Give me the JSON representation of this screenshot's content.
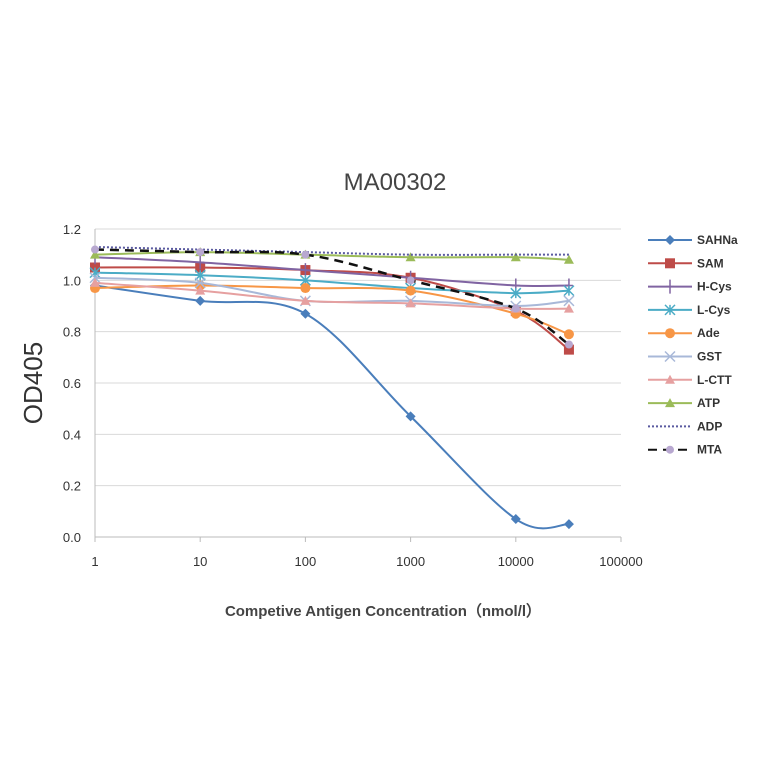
{
  "chart_data": {
    "type": "line",
    "title": "MA00302",
    "xlabel": "Competive Antigen Concentration（nmol/l）",
    "ylabel": "OD405",
    "xscale": "log",
    "xlim": [
      1,
      100000
    ],
    "ylim": [
      0,
      1.2
    ],
    "xticks": [
      "1",
      "10",
      "100",
      "1000",
      "10000",
      "100000"
    ],
    "yticks": [
      "0.0",
      "0.2",
      "0.4",
      "0.6",
      "0.8",
      "1.0",
      "1.2"
    ],
    "grid": "horizontal",
    "legend": "right",
    "x": [
      1,
      10,
      100,
      1000,
      10000,
      32000
    ],
    "series": [
      {
        "name": "SAHNa",
        "color": "#4a7ebb",
        "marker": "diamond",
        "dash": "solid",
        "values": [
          0.98,
          0.92,
          0.87,
          0.47,
          0.07,
          0.05
        ]
      },
      {
        "name": "SAM",
        "color": "#be4b48",
        "marker": "square",
        "dash": "solid",
        "values": [
          1.05,
          1.05,
          1.04,
          1.01,
          0.88,
          0.73
        ]
      },
      {
        "name": "H-Cys",
        "color": "#8064a2",
        "marker": "plus",
        "dash": "solid",
        "values": [
          1.09,
          1.07,
          1.04,
          1.01,
          0.98,
          0.98
        ]
      },
      {
        "name": "L-Cys",
        "color": "#4bacc6",
        "marker": "star",
        "dash": "solid",
        "values": [
          1.03,
          1.02,
          1.0,
          0.97,
          0.95,
          0.96
        ]
      },
      {
        "name": "Ade",
        "color": "#f79646",
        "marker": "circle",
        "dash": "solid",
        "values": [
          0.97,
          0.98,
          0.97,
          0.96,
          0.87,
          0.79
        ]
      },
      {
        "name": "GST",
        "color": "#a8b8d8",
        "marker": "x",
        "dash": "solid",
        "values": [
          1.01,
          0.99,
          0.92,
          0.92,
          0.9,
          0.92
        ]
      },
      {
        "name": "L-CTT",
        "color": "#e6a0a0",
        "marker": "triangle",
        "dash": "solid",
        "values": [
          0.99,
          0.96,
          0.92,
          0.91,
          0.89,
          0.89
        ]
      },
      {
        "name": "ATP",
        "color": "#9bbb59",
        "marker": "triangle",
        "dash": "solid",
        "values": [
          1.1,
          1.11,
          1.1,
          1.09,
          1.09,
          1.08
        ]
      },
      {
        "name": "ADP",
        "color": "#5a5aa0",
        "marker": "none",
        "dash": "dotted",
        "values": [
          1.13,
          1.12,
          1.11,
          1.1,
          1.1,
          1.1
        ]
      },
      {
        "name": "MTA",
        "color": "#111111",
        "marker": "circle-lilac",
        "dash": "dashed",
        "values": [
          1.12,
          1.11,
          1.1,
          1.0,
          0.89,
          0.75
        ]
      }
    ]
  }
}
